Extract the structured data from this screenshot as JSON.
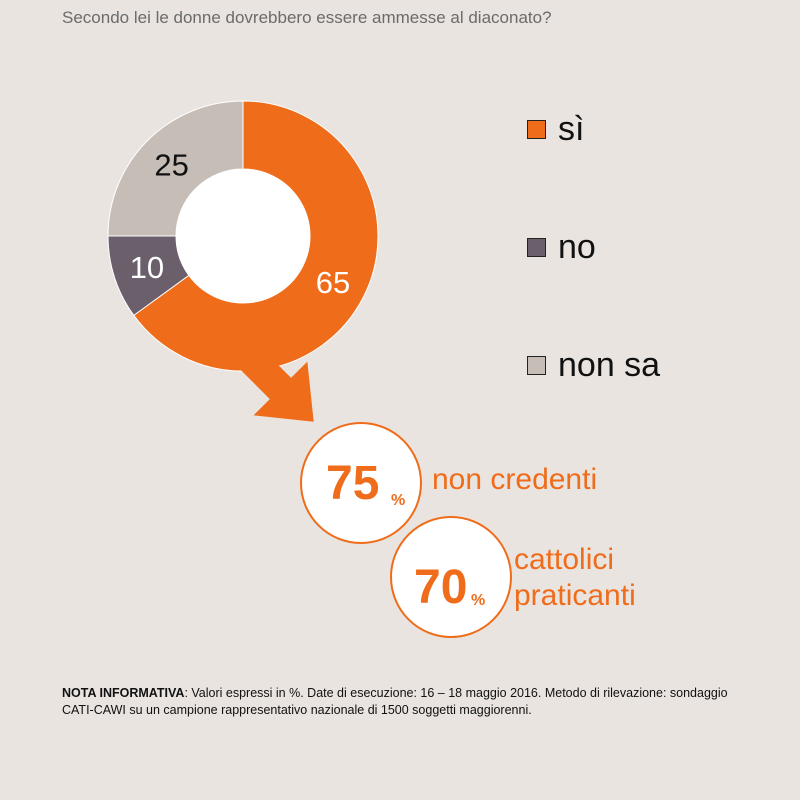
{
  "title": "Secondo lei le donne dovrebbero essere ammesse al diaconato?",
  "chart_data": {
    "type": "pie",
    "variant": "donut",
    "categories": [
      "sì",
      "no",
      "non sa"
    ],
    "values": [
      65,
      10,
      25
    ],
    "colors": [
      "#ef6c1a",
      "#6a5f6b",
      "#c6bdb6"
    ],
    "legend_position": "right"
  },
  "legend": [
    {
      "label": "sì",
      "color": "#ef6c1a"
    },
    {
      "label": "no",
      "color": "#6a5f6b"
    },
    {
      "label": "non sa",
      "color": "#c6bdb6"
    }
  ],
  "callouts": [
    {
      "value": "75",
      "unit": "%",
      "label_lines": [
        "non credenti"
      ]
    },
    {
      "value": "70",
      "unit": "%",
      "label_lines": [
        "cattolici",
        "praticanti"
      ]
    }
  ],
  "note": {
    "heading": "NOTA INFORMATIVA",
    "text": ": Valori espressi in %. Date di esecuzione: 16 – 18 maggio 2016. Metodo di rilevazione: sondaggio CATI-CAWI su un campione rappresentativo nazionale di 1500 soggetti maggiorenni."
  }
}
